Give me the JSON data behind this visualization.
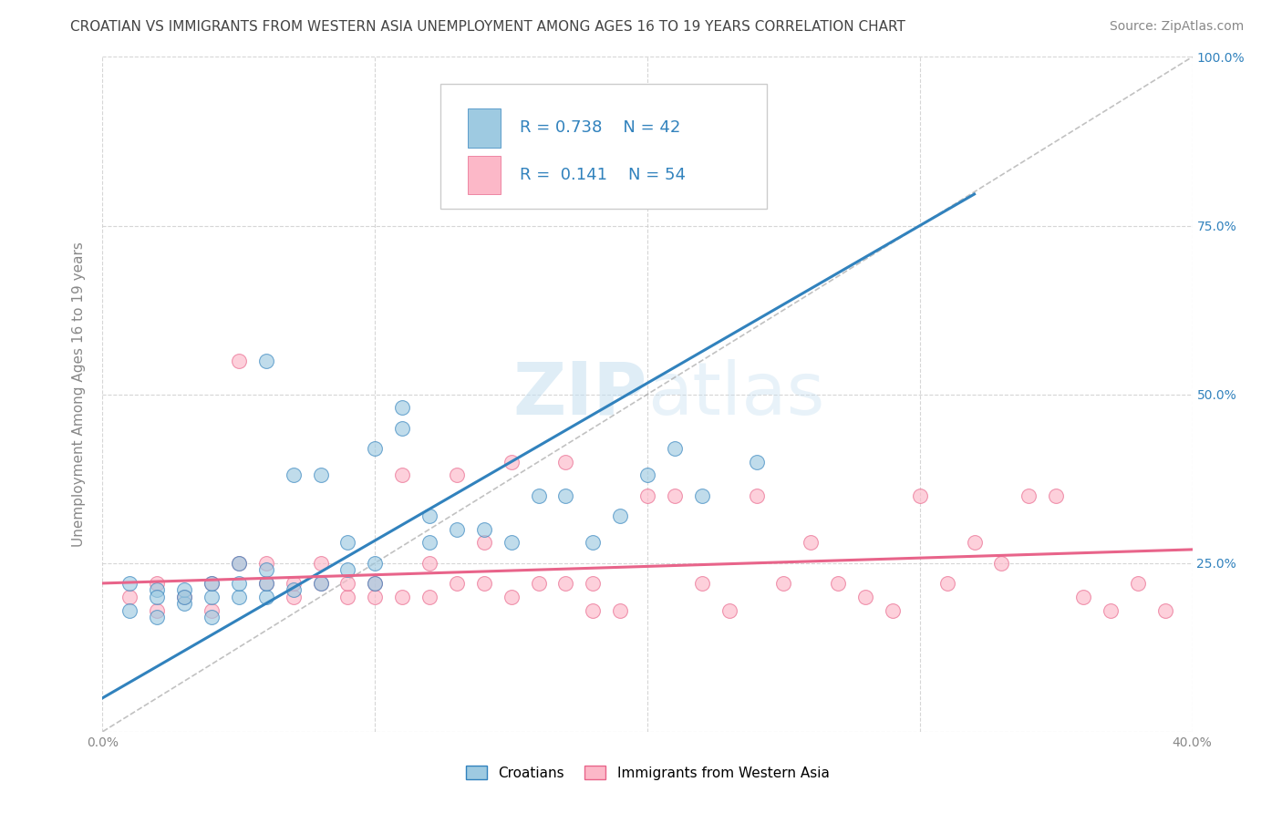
{
  "title": "CROATIAN VS IMMIGRANTS FROM WESTERN ASIA UNEMPLOYMENT AMONG AGES 16 TO 19 YEARS CORRELATION CHART",
  "source": "Source: ZipAtlas.com",
  "ylabel": "Unemployment Among Ages 16 to 19 years",
  "x_min": 0.0,
  "x_max": 0.4,
  "y_min": 0.0,
  "y_max": 1.0,
  "x_ticks": [
    0.0,
    0.1,
    0.2,
    0.3,
    0.4
  ],
  "x_tick_labels": [
    "0.0%",
    "",
    "",
    "",
    "40.0%"
  ],
  "y_ticks_right": [
    0.0,
    0.25,
    0.5,
    0.75,
    1.0
  ],
  "y_tick_labels_right": [
    "",
    "25.0%",
    "50.0%",
    "75.0%",
    "100.0%"
  ],
  "croatians_R": 0.738,
  "croatians_N": 42,
  "immigrants_R": 0.141,
  "immigrants_N": 54,
  "legend_label_croatians": "Croatians",
  "legend_label_immigrants": "Immigrants from Western Asia",
  "blue_color": "#9ecae1",
  "pink_color": "#fcb8c8",
  "blue_line_color": "#3182bd",
  "pink_line_color": "#e8648a",
  "background_color": "#ffffff",
  "grid_color": "#cccccc",
  "croatians_x": [
    0.01,
    0.01,
    0.02,
    0.02,
    0.02,
    0.03,
    0.03,
    0.03,
    0.04,
    0.04,
    0.04,
    0.05,
    0.05,
    0.05,
    0.06,
    0.06,
    0.06,
    0.06,
    0.07,
    0.07,
    0.08,
    0.08,
    0.09,
    0.09,
    0.1,
    0.1,
    0.1,
    0.11,
    0.11,
    0.12,
    0.12,
    0.13,
    0.14,
    0.15,
    0.16,
    0.17,
    0.18,
    0.19,
    0.2,
    0.21,
    0.22,
    0.24
  ],
  "croatians_y": [
    0.18,
    0.22,
    0.17,
    0.21,
    0.2,
    0.19,
    0.21,
    0.2,
    0.17,
    0.2,
    0.22,
    0.2,
    0.22,
    0.25,
    0.2,
    0.22,
    0.24,
    0.55,
    0.21,
    0.38,
    0.22,
    0.38,
    0.24,
    0.28,
    0.22,
    0.25,
    0.42,
    0.45,
    0.48,
    0.28,
    0.32,
    0.3,
    0.3,
    0.28,
    0.35,
    0.35,
    0.28,
    0.32,
    0.38,
    0.42,
    0.35,
    0.4
  ],
  "immigrants_x": [
    0.01,
    0.02,
    0.02,
    0.03,
    0.04,
    0.04,
    0.05,
    0.05,
    0.06,
    0.06,
    0.07,
    0.07,
    0.08,
    0.08,
    0.09,
    0.09,
    0.1,
    0.1,
    0.11,
    0.11,
    0.12,
    0.12,
    0.13,
    0.13,
    0.14,
    0.14,
    0.15,
    0.15,
    0.16,
    0.17,
    0.17,
    0.18,
    0.18,
    0.19,
    0.2,
    0.21,
    0.22,
    0.23,
    0.24,
    0.25,
    0.26,
    0.27,
    0.28,
    0.29,
    0.3,
    0.31,
    0.32,
    0.33,
    0.34,
    0.35,
    0.36,
    0.37,
    0.38,
    0.39
  ],
  "immigrants_y": [
    0.2,
    0.18,
    0.22,
    0.2,
    0.22,
    0.18,
    0.25,
    0.55,
    0.22,
    0.25,
    0.2,
    0.22,
    0.22,
    0.25,
    0.2,
    0.22,
    0.2,
    0.22,
    0.2,
    0.38,
    0.2,
    0.25,
    0.22,
    0.38,
    0.22,
    0.28,
    0.2,
    0.4,
    0.22,
    0.22,
    0.4,
    0.18,
    0.22,
    0.18,
    0.35,
    0.35,
    0.22,
    0.18,
    0.35,
    0.22,
    0.28,
    0.22,
    0.2,
    0.18,
    0.35,
    0.22,
    0.28,
    0.25,
    0.35,
    0.35,
    0.2,
    0.18,
    0.22,
    0.18
  ],
  "title_fontsize": 11,
  "source_fontsize": 10,
  "axis_label_fontsize": 11,
  "tick_fontsize": 10,
  "legend_fontsize": 13,
  "watermark_color": "#c5dff0",
  "watermark_alpha": 0.6
}
